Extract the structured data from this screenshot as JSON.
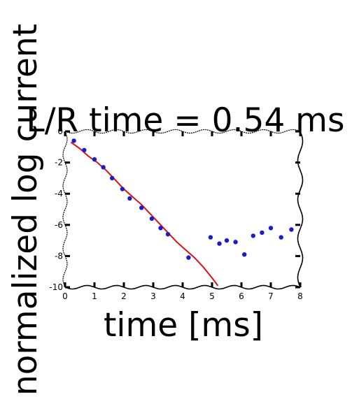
{
  "chart_data": {
    "type": "scatter",
    "title": "L/R time = 0.54 ms",
    "xlabel": "time [ms]",
    "ylabel": "normalized log current",
    "xlim": [
      0,
      8
    ],
    "ylim": [
      -10,
      0
    ],
    "x_ticks": [
      "0",
      "1",
      "2",
      "3",
      "4",
      "5",
      "6",
      "7",
      "8"
    ],
    "y_ticks": [
      "0",
      "-2",
      "-4",
      "-6",
      "-8",
      "-10"
    ],
    "grid": false,
    "series": [
      {
        "kind": "points",
        "color": "#1a1ad6",
        "points": [
          [
            0.3,
            -0.6
          ],
          [
            0.65,
            -1.2
          ],
          [
            1.0,
            -1.8
          ],
          [
            1.3,
            -2.3
          ],
          [
            1.6,
            -3.0
          ],
          [
            1.95,
            -3.7
          ],
          [
            2.2,
            -4.3
          ],
          [
            2.6,
            -4.9
          ],
          [
            2.95,
            -5.6
          ],
          [
            3.25,
            -6.2
          ],
          [
            3.5,
            -6.6
          ],
          [
            4.2,
            -8.1
          ],
          [
            4.95,
            -6.8
          ],
          [
            5.25,
            -7.2
          ],
          [
            5.5,
            -7.0
          ],
          [
            5.8,
            -7.1
          ],
          [
            6.1,
            -7.9
          ],
          [
            6.4,
            -6.7
          ],
          [
            6.7,
            -6.5
          ],
          [
            7.0,
            -6.2
          ],
          [
            7.35,
            -6.8
          ],
          [
            7.7,
            -6.3
          ]
        ]
      },
      {
        "kind": "line",
        "color": "#e01010",
        "points": [
          [
            0.2,
            -0.7
          ],
          [
            0.5,
            -1.1
          ],
          [
            0.8,
            -1.6
          ],
          [
            1.1,
            -2.0
          ],
          [
            1.4,
            -2.5
          ],
          [
            1.7,
            -3.1
          ],
          [
            2.0,
            -3.7
          ],
          [
            2.3,
            -4.2
          ],
          [
            2.6,
            -4.7
          ],
          [
            2.9,
            -5.3
          ],
          [
            3.2,
            -5.9
          ],
          [
            3.5,
            -6.5
          ],
          [
            3.8,
            -7.1
          ],
          [
            4.1,
            -7.6
          ],
          [
            4.4,
            -8.1
          ],
          [
            4.7,
            -8.7
          ],
          [
            5.0,
            -9.4
          ],
          [
            5.2,
            -9.9
          ]
        ]
      }
    ]
  }
}
